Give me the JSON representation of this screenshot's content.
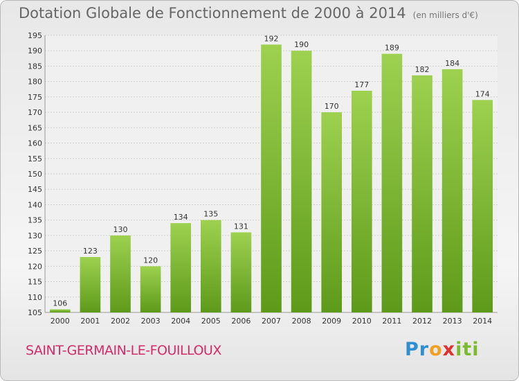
{
  "chart_data": {
    "type": "bar",
    "title": "Dotation Globale de Fonctionnement de 2000 à 2014",
    "unit_label": "(en milliers d'€)",
    "categories": [
      "2000",
      "2001",
      "2002",
      "2003",
      "2004",
      "2005",
      "2006",
      "2007",
      "2008",
      "2009",
      "2010",
      "2011",
      "2012",
      "2013",
      "2014"
    ],
    "values": [
      106,
      123,
      130,
      120,
      134,
      135,
      131,
      192,
      190,
      170,
      177,
      189,
      182,
      184,
      174
    ],
    "ylim": [
      105,
      195
    ],
    "yticks": [
      105,
      110,
      115,
      120,
      125,
      130,
      135,
      140,
      145,
      150,
      155,
      160,
      165,
      170,
      175,
      180,
      185,
      190,
      195
    ],
    "grid": true,
    "legend": "none",
    "bar_color": "#7cbb2e"
  },
  "footer": {
    "commune": "SAINT-GERMAIN-LE-FOUILLOUX",
    "brand": "Proxiti"
  }
}
